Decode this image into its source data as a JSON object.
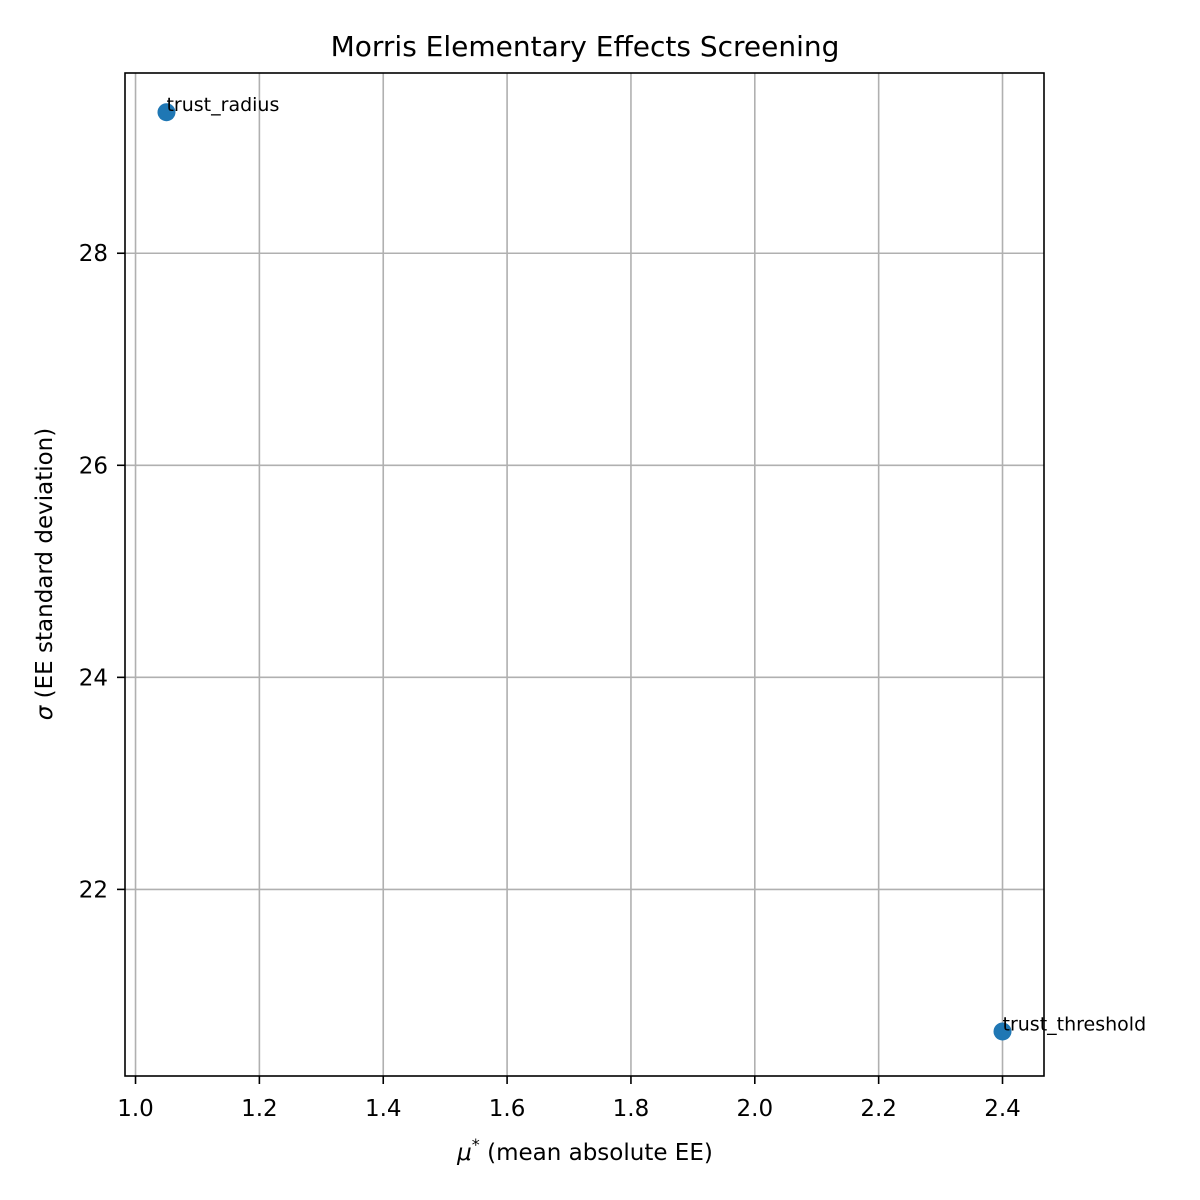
{
  "chart_data": {
    "type": "scatter",
    "title": "Morris Elementary Effects Screening",
    "xlabel_symbol": "μ",
    "xlabel_superscript": "*",
    "xlabel_text": " (mean absolute EE)",
    "ylabel_symbol": "σ",
    "ylabel_text": " (EE standard deviation)",
    "xlim": [
      0.983,
      2.467
    ],
    "ylim": [
      20.24,
      29.7
    ],
    "xticks": [
      1.0,
      1.2,
      1.4,
      1.6,
      1.8,
      2.0,
      2.2,
      2.4
    ],
    "xtick_labels": [
      "1.0",
      "1.2",
      "1.4",
      "1.6",
      "1.8",
      "2.0",
      "2.2",
      "2.4"
    ],
    "yticks": [
      22,
      24,
      26,
      28
    ],
    "ytick_labels": [
      "22",
      "24",
      "26",
      "28"
    ],
    "grid": true,
    "marker_color": "#1f77b4",
    "points": [
      {
        "label": "trust_radius",
        "x": 1.05,
        "y": 29.33
      },
      {
        "label": "trust_threshold",
        "x": 2.4,
        "y": 20.66
      }
    ]
  }
}
